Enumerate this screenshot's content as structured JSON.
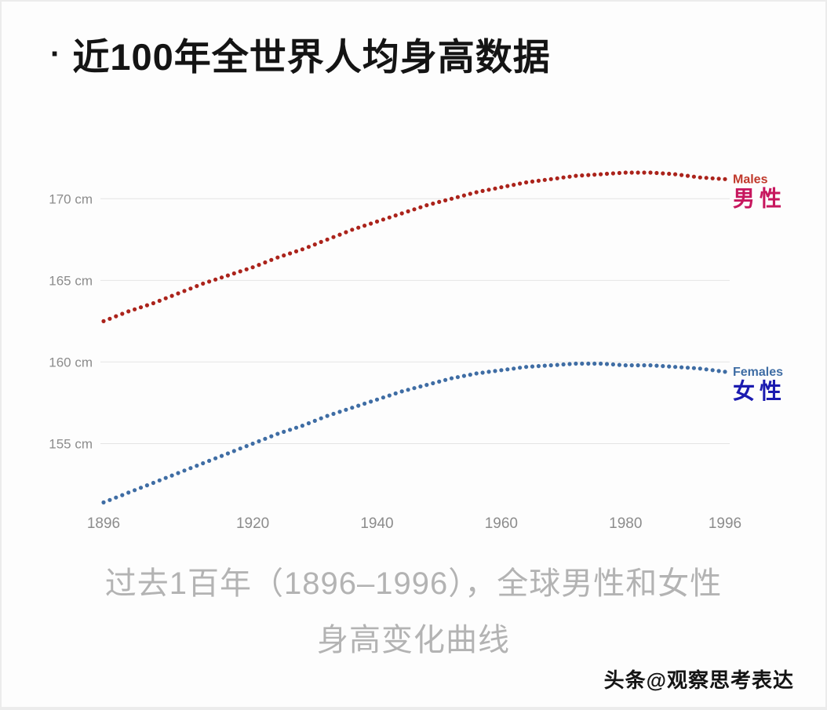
{
  "page": {
    "title_bullet": "·",
    "title": "近100年全世界人均身高数据",
    "caption_line1": "过去1百年（1896–1996），全球男性和女性",
    "caption_line2": "身高变化曲线",
    "watermark": "头条@观察思考表达"
  },
  "chart_data": {
    "type": "line",
    "title": "近100年全世界人均身高数据",
    "xlabel": "",
    "ylabel": "",
    "grid": "horizontal",
    "legend_position": "right-end-labels",
    "xlim": [
      1896,
      1996
    ],
    "ylim": [
      150.7,
      172.8
    ],
    "x_ticks": [
      1896,
      1920,
      1940,
      1960,
      1980,
      1996
    ],
    "y_ticks": [
      155,
      160,
      165,
      170
    ],
    "y_tick_labels": [
      "155 cm",
      "160 cm",
      "165 cm",
      "170 cm"
    ],
    "colors": {
      "grid": "#e4e4e4",
      "tick_label": "#8c8c8c",
      "caption": "#b3b3b3"
    },
    "series": [
      {
        "name": "Males",
        "label_en": "Males",
        "label_zh": "男性",
        "color": "#ab231b",
        "label_en_color": "#c0392b",
        "label_zh_color": "#c7175e",
        "points": [
          [
            1896,
            162.5
          ],
          [
            1900,
            163.1
          ],
          [
            1904,
            163.6
          ],
          [
            1908,
            164.2
          ],
          [
            1912,
            164.8
          ],
          [
            1916,
            165.3
          ],
          [
            1920,
            165.8
          ],
          [
            1924,
            166.4
          ],
          [
            1928,
            166.9
          ],
          [
            1932,
            167.5
          ],
          [
            1936,
            168.1
          ],
          [
            1940,
            168.6
          ],
          [
            1944,
            169.1
          ],
          [
            1948,
            169.6
          ],
          [
            1952,
            170.0
          ],
          [
            1956,
            170.4
          ],
          [
            1960,
            170.7
          ],
          [
            1964,
            171.0
          ],
          [
            1968,
            171.2
          ],
          [
            1972,
            171.4
          ],
          [
            1976,
            171.5
          ],
          [
            1980,
            171.6
          ],
          [
            1984,
            171.6
          ],
          [
            1988,
            171.5
          ],
          [
            1992,
            171.3
          ],
          [
            1996,
            171.2
          ]
        ]
      },
      {
        "name": "Females",
        "label_en": "Females",
        "label_zh": "女性",
        "color": "#3f6da4",
        "label_en_color": "#3f6da4",
        "label_zh_color": "#1b1bb0",
        "points": [
          [
            1896,
            151.4
          ],
          [
            1900,
            152.0
          ],
          [
            1904,
            152.6
          ],
          [
            1908,
            153.2
          ],
          [
            1912,
            153.8
          ],
          [
            1916,
            154.4
          ],
          [
            1920,
            155.0
          ],
          [
            1924,
            155.6
          ],
          [
            1928,
            156.1
          ],
          [
            1932,
            156.7
          ],
          [
            1936,
            157.2
          ],
          [
            1940,
            157.7
          ],
          [
            1944,
            158.2
          ],
          [
            1948,
            158.6
          ],
          [
            1952,
            159.0
          ],
          [
            1956,
            159.3
          ],
          [
            1960,
            159.5
          ],
          [
            1964,
            159.7
          ],
          [
            1968,
            159.8
          ],
          [
            1972,
            159.9
          ],
          [
            1976,
            159.9
          ],
          [
            1980,
            159.8
          ],
          [
            1984,
            159.8
          ],
          [
            1988,
            159.7
          ],
          [
            1992,
            159.6
          ],
          [
            1996,
            159.4
          ]
        ]
      }
    ]
  }
}
